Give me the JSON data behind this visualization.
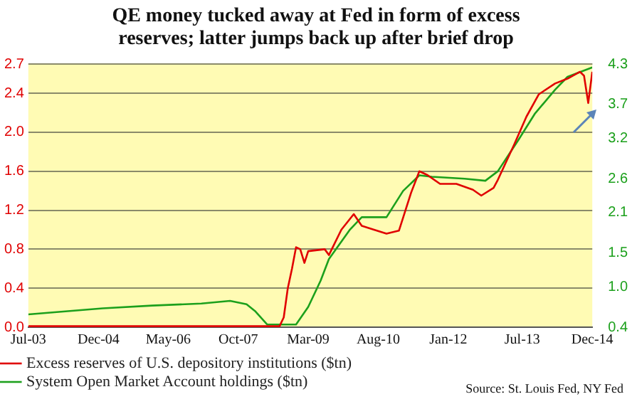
{
  "chart_data": {
    "type": "line",
    "title": "QE money tucked away at Fed in form of excess reserves; latter jumps back up after brief drop",
    "annotations": [
      "Source: St. Louis Fed, NY Fed"
    ],
    "xlim": [
      "2003-07",
      "2014-12"
    ],
    "xticks": [
      {
        "value": "2003-07",
        "label": "Jul-03"
      },
      {
        "value": "2004-12",
        "label": "Dec-04"
      },
      {
        "value": "2006-05",
        "label": "May-06"
      },
      {
        "value": "2007-10",
        "label": "Oct-07"
      },
      {
        "value": "2009-03",
        "label": "Mar-09"
      },
      {
        "value": "2010-08",
        "label": "Aug-10"
      },
      {
        "value": "2012-01",
        "label": "Jan-12"
      },
      {
        "value": "2013-07",
        "label": "Jul-13"
      },
      {
        "value": "2014-12",
        "label": "Dec-14"
      }
    ],
    "ylim": [
      0,
      2.7
    ],
    "yticks": [
      {
        "value": 0,
        "label": "0.0"
      },
      0.4,
      0.8,
      1.2,
      1.6,
      {
        "value": 2,
        "label": "2.0"
      },
      2.4,
      2.7
    ],
    "y2lim": [
      0.4,
      4.3
    ],
    "y2ticks": [
      0.4,
      {
        "value": 1,
        "label": "1.0"
      },
      1.5,
      2.1,
      2.6,
      3.2,
      3.7,
      4.3
    ],
    "grid": "y",
    "legend": "bottom left",
    "marker": "none",
    "line_style": "solid",
    "series": [
      {
        "name": "Excess reserves of U.S. depository institutions ($tn)",
        "color": "#e00000",
        "axis": "y",
        "x": [
          "2003-07",
          "2008-08",
          "2008-09",
          "2008-10",
          "2008-11",
          "2008-12",
          "2009-01",
          "2009-02",
          "2009-03",
          "2009-07",
          "2009-08",
          "2009-11",
          "2010-02",
          "2010-04",
          "2010-07",
          "2010-10",
          "2011-01",
          "2011-04",
          "2011-06",
          "2011-08",
          "2011-11",
          "2012-03",
          "2012-07",
          "2012-09",
          "2012-12",
          "2013-01",
          "2013-05",
          "2013-08",
          "2013-11",
          "2014-03",
          "2014-06",
          "2014-09",
          "2014-10",
          "2014-11",
          "2014-12"
        ],
        "values": [
          0.01,
          0.01,
          0.1,
          0.4,
          0.6,
          0.82,
          0.8,
          0.66,
          0.78,
          0.8,
          0.74,
          1.0,
          1.16,
          1.04,
          1.0,
          0.96,
          0.99,
          1.38,
          1.6,
          1.56,
          1.47,
          1.47,
          1.41,
          1.35,
          1.43,
          1.51,
          1.87,
          2.16,
          2.39,
          2.5,
          2.55,
          2.62,
          2.58,
          2.3,
          2.62
        ]
      },
      {
        "name": "System Open Market Account holdings ($tn)",
        "color": "#1ca01c",
        "axis": "y2",
        "x": [
          "2003-07",
          "2005-01",
          "2006-01",
          "2007-01",
          "2007-08",
          "2007-12",
          "2008-02",
          "2008-05",
          "2008-12",
          "2009-03",
          "2009-06",
          "2009-08",
          "2010-01",
          "2010-04",
          "2010-10",
          "2011-02",
          "2011-06",
          "2011-09",
          "2012-05",
          "2012-10",
          "2013-01",
          "2013-06",
          "2013-10",
          "2014-03",
          "2014-06",
          "2014-12"
        ],
        "values": [
          0.59,
          0.68,
          0.72,
          0.75,
          0.79,
          0.74,
          0.64,
          0.44,
          0.44,
          0.7,
          1.09,
          1.41,
          1.84,
          2.03,
          2.03,
          2.42,
          2.65,
          2.63,
          2.6,
          2.57,
          2.71,
          3.17,
          3.56,
          3.92,
          4.11,
          4.25
        ]
      }
    ]
  }
}
